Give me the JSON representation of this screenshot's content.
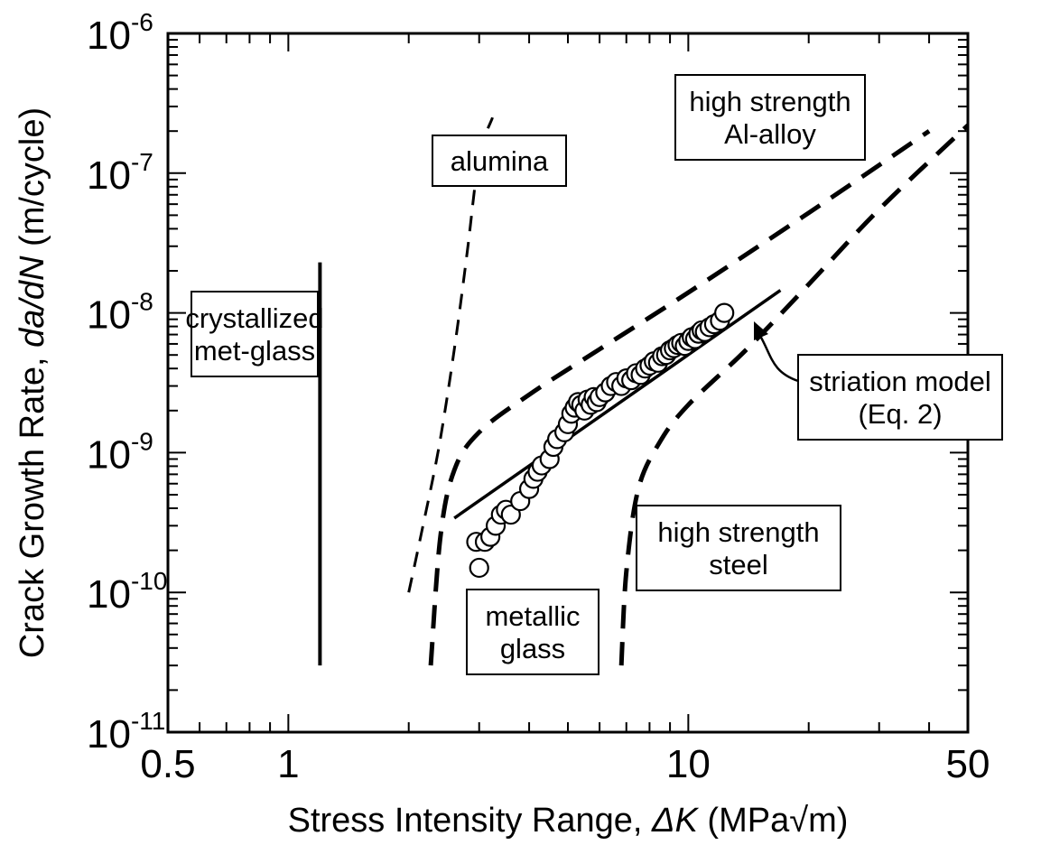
{
  "chart_data": {
    "type": "scatter",
    "xlabel": {
      "pre": "Stress Intensity Range, ",
      "sym": "ΔK",
      "post": " (MPa√m)"
    },
    "ylabel": {
      "pre": "Crack Growth Rate, ",
      "sym": "da/dN",
      "post": " (m/cycle)"
    },
    "x_scale": "log",
    "y_scale": "log",
    "xlim": [
      0.5,
      50
    ],
    "ylim": [
      1e-11,
      1e-06
    ],
    "x_ticks": [
      {
        "value": 0.5,
        "label": "0.5"
      },
      {
        "value": 1,
        "label": "1"
      },
      {
        "value": 10,
        "label": "10"
      },
      {
        "value": 50,
        "label": "50"
      }
    ],
    "y_ticks": [
      {
        "value": 1e-11,
        "base": "10",
        "exp": "-11"
      },
      {
        "value": 1e-10,
        "base": "10",
        "exp": "-10"
      },
      {
        "value": 1e-09,
        "base": "10",
        "exp": "-9"
      },
      {
        "value": 1e-08,
        "base": "10",
        "exp": "-8"
      },
      {
        "value": 1e-07,
        "base": "10",
        "exp": "-7"
      },
      {
        "value": 1e-06,
        "base": "10",
        "exp": "-6"
      }
    ],
    "grid": false,
    "curves": [
      {
        "id": "crystallized",
        "style": "solid-thick",
        "x": [
          1.2,
          1.2
        ],
        "y": [
          3e-11,
          2.3e-08
        ]
      },
      {
        "id": "alumina",
        "style": "dashed-thin",
        "x": [
          2.0,
          2.16,
          2.38,
          2.6,
          2.8,
          3.0,
          3.24
        ],
        "y": [
          1e-10,
          2.8e-10,
          1.1e-09,
          5.5e-09,
          2.7e-08,
          1.3e-07,
          2.5e-07
        ]
      },
      {
        "id": "al-alloy",
        "style": "dashed-thick",
        "x": [
          2.27,
          2.4,
          2.6,
          3.0,
          4.0,
          6.0,
          10.0,
          20.0,
          40.0
        ],
        "y": [
          3e-11,
          2.5e-10,
          7.5e-10,
          1.4e-09,
          2.6e-09,
          5.5e-09,
          1.4e-08,
          5.2e-08,
          2e-07
        ]
      },
      {
        "id": "steel",
        "style": "dashed-thick",
        "x": [
          6.8,
          7.0,
          7.5,
          8.5,
          10.0,
          14.0,
          20.0,
          30.0,
          50.0
        ],
        "y": [
          3e-11,
          1.4e-10,
          5.5e-10,
          1.2e-09,
          2.2e-09,
          5.5e-09,
          1.6e-08,
          5.5e-08,
          2.2e-07
        ]
      },
      {
        "id": "striation",
        "style": "solid",
        "x": [
          2.6,
          17.0
        ],
        "y": [
          3.4e-10,
          1.45e-08
        ]
      }
    ],
    "scatter_points": {
      "x": [
        3.0,
        2.95,
        3.1,
        3.2,
        3.3,
        3.4,
        3.5,
        3.6,
        3.8,
        4.0,
        4.1,
        4.2,
        4.3,
        4.5,
        4.6,
        4.7,
        4.9,
        5.0,
        5.1,
        5.2,
        5.3,
        5.4,
        5.5,
        5.6,
        5.7,
        5.8,
        5.9,
        6.0,
        6.2,
        6.4,
        6.6,
        6.8,
        7.0,
        7.2,
        7.4,
        7.6,
        7.8,
        8.0,
        8.2,
        8.4,
        8.6,
        8.8,
        9.0,
        9.2,
        9.4,
        9.6,
        9.8,
        10.0,
        10.2,
        10.4,
        10.6,
        10.8,
        11.0,
        11.3,
        11.6,
        12.0,
        12.3
      ],
      "y": [
        1.5e-10,
        2.3e-10,
        2.3e-10,
        2.5e-10,
        3e-10,
        3.6e-10,
        3.9e-10,
        3.6e-10,
        4.5e-10,
        5.5e-10,
        6.5e-10,
        7.3e-10,
        8.1e-10,
        9e-10,
        1.1e-09,
        1.25e-09,
        1.4e-09,
        1.6e-09,
        1.9e-09,
        2.1e-09,
        2.3e-09,
        2.2e-09,
        2e-09,
        2.4e-09,
        2.2e-09,
        2.5e-09,
        2.3e-09,
        2.5e-09,
        2.7e-09,
        3e-09,
        3.2e-09,
        3e-09,
        3.4e-09,
        3.3e-09,
        3.7e-09,
        3.6e-09,
        4e-09,
        4.2e-09,
        4.5e-09,
        4.4e-09,
        4.9e-09,
        5e-09,
        5.4e-09,
        5.6e-09,
        5.9e-09,
        6.1e-09,
        5.8e-09,
        6.3e-09,
        6.7e-09,
        6.5e-09,
        7.1e-09,
        7.5e-09,
        7.3e-09,
        7.9e-09,
        8.3e-09,
        8.8e-09,
        1e-08
      ]
    },
    "annotations": [
      {
        "id": "alumina-label",
        "lines": [
          "alumina"
        ]
      },
      {
        "id": "al-alloy-label",
        "lines": [
          "high strength",
          "Al-alloy"
        ]
      },
      {
        "id": "crystallized-label",
        "lines": [
          "crystallized",
          "met-glass"
        ]
      },
      {
        "id": "striation-label",
        "lines": [
          "striation model",
          "(Eq. 2)"
        ]
      },
      {
        "id": "steel-label",
        "lines": [
          "high strength",
          "steel"
        ]
      },
      {
        "id": "metallic-glass-label",
        "lines": [
          "metallic",
          "glass"
        ]
      }
    ]
  }
}
